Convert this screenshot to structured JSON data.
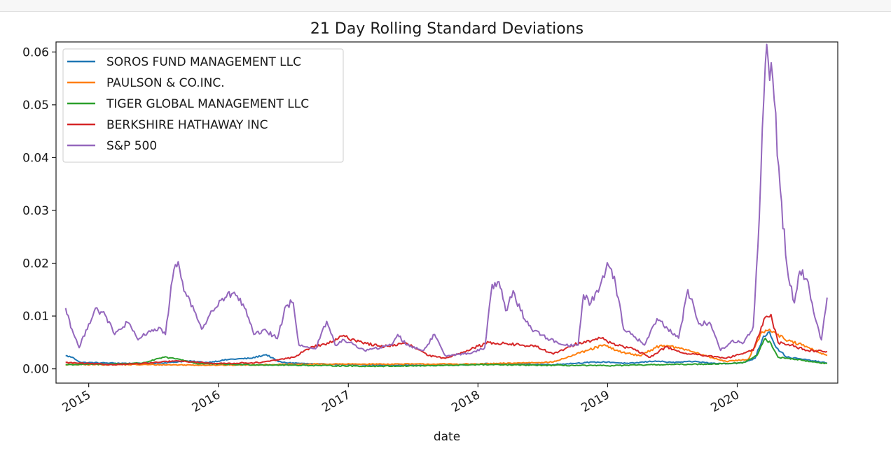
{
  "chart_data": {
    "type": "line",
    "title": "21 Day Rolling Standard Deviations",
    "xlabel": "date",
    "ylabel": "",
    "xlim": [
      "2014-10-01",
      "2020-10-10"
    ],
    "ylim": [
      -0.0027,
      0.0619
    ],
    "x_tick_labels": [
      "2015",
      "2016",
      "2017",
      "2018",
      "2019",
      "2020"
    ],
    "x_ticks": [
      "2015-01-01",
      "2016-01-01",
      "2017-01-01",
      "2018-01-01",
      "2019-01-01",
      "2020-01-01"
    ],
    "y_ticks": [
      0.0,
      0.01,
      0.02,
      0.03,
      0.04,
      0.05,
      0.06
    ],
    "y_tick_labels": [
      "0.00",
      "0.01",
      "0.02",
      "0.03",
      "0.04",
      "0.05",
      "0.06"
    ],
    "grid": false,
    "legend_position": "upper left",
    "series": [
      {
        "name": "SOROS FUND MANAGEMENT LLC",
        "color": "#1f77b4",
        "points": [
          [
            "2014-10-28",
            0.0025
          ],
          [
            "2014-11-15",
            0.0022
          ],
          [
            "2014-12-10",
            0.0012
          ],
          [
            "2015-03-01",
            0.0011
          ],
          [
            "2015-06-01",
            0.001
          ],
          [
            "2015-08-20",
            0.0012
          ],
          [
            "2015-10-01",
            0.0015
          ],
          [
            "2015-12-01",
            0.0012
          ],
          [
            "2016-02-01",
            0.0018
          ],
          [
            "2016-04-01",
            0.002
          ],
          [
            "2016-05-15",
            0.0027
          ],
          [
            "2016-06-15",
            0.0015
          ],
          [
            "2016-07-01",
            0.0012
          ],
          [
            "2016-10-01",
            0.0009
          ],
          [
            "2017-01-01",
            0.0008
          ],
          [
            "2017-06-01",
            0.0007
          ],
          [
            "2017-10-01",
            0.0007
          ],
          [
            "2018-02-15",
            0.001
          ],
          [
            "2018-04-01",
            0.0009
          ],
          [
            "2018-08-01",
            0.0008
          ],
          [
            "2018-11-01",
            0.0012
          ],
          [
            "2019-01-01",
            0.0013
          ],
          [
            "2019-03-01",
            0.001
          ],
          [
            "2019-05-15",
            0.0015
          ],
          [
            "2019-07-01",
            0.0012
          ],
          [
            "2019-09-01",
            0.0014
          ],
          [
            "2019-11-01",
            0.001
          ],
          [
            "2020-01-15",
            0.0011
          ],
          [
            "2020-02-20",
            0.002
          ],
          [
            "2020-03-15",
            0.0062
          ],
          [
            "2020-04-01",
            0.007
          ],
          [
            "2020-04-20",
            0.004
          ],
          [
            "2020-05-20",
            0.0022
          ],
          [
            "2020-07-15",
            0.0017
          ],
          [
            "2020-09-10",
            0.0011
          ]
        ]
      },
      {
        "name": "PAULSON & CO.INC.",
        "color": "#ff7f0e",
        "points": [
          [
            "2014-10-28",
            0.0008
          ],
          [
            "2015-06-01",
            0.0008
          ],
          [
            "2016-01-01",
            0.0007
          ],
          [
            "2016-06-01",
            0.0008
          ],
          [
            "2016-10-01",
            0.0009
          ],
          [
            "2017-06-01",
            0.0009
          ],
          [
            "2018-01-01",
            0.0009
          ],
          [
            "2018-08-01",
            0.0013
          ],
          [
            "2018-10-15",
            0.003
          ],
          [
            "2018-12-20",
            0.0045
          ],
          [
            "2019-02-01",
            0.0033
          ],
          [
            "2019-04-01",
            0.0025
          ],
          [
            "2019-06-01",
            0.0045
          ],
          [
            "2019-08-01",
            0.0038
          ],
          [
            "2019-10-01",
            0.0025
          ],
          [
            "2019-12-01",
            0.0014
          ],
          [
            "2020-02-01",
            0.0018
          ],
          [
            "2020-03-10",
            0.007
          ],
          [
            "2020-04-01",
            0.0075
          ],
          [
            "2020-05-15",
            0.0055
          ],
          [
            "2020-07-01",
            0.0045
          ],
          [
            "2020-08-15",
            0.0032
          ],
          [
            "2020-09-10",
            0.0025
          ]
        ]
      },
      {
        "name": "TIGER GLOBAL MANAGEMENT LLC",
        "color": "#2ca02c",
        "points": [
          [
            "2014-10-28",
            0.0008
          ],
          [
            "2015-03-01",
            0.0009
          ],
          [
            "2015-06-01",
            0.0011
          ],
          [
            "2015-08-01",
            0.0022
          ],
          [
            "2015-09-15",
            0.0018
          ],
          [
            "2015-11-01",
            0.001
          ],
          [
            "2016-03-01",
            0.0008
          ],
          [
            "2016-08-01",
            0.0007
          ],
          [
            "2017-03-01",
            0.0005
          ],
          [
            "2017-09-01",
            0.0006
          ],
          [
            "2018-01-01",
            0.0008
          ],
          [
            "2018-06-01",
            0.0007
          ],
          [
            "2019-01-01",
            0.0006
          ],
          [
            "2019-06-01",
            0.0008
          ],
          [
            "2019-10-01",
            0.0009
          ],
          [
            "2020-01-15",
            0.0011
          ],
          [
            "2020-02-25",
            0.0025
          ],
          [
            "2020-03-20",
            0.0058
          ],
          [
            "2020-04-05",
            0.0048
          ],
          [
            "2020-04-25",
            0.0022
          ],
          [
            "2020-06-15",
            0.0018
          ],
          [
            "2020-08-01",
            0.0013
          ],
          [
            "2020-09-10",
            0.001
          ]
        ]
      },
      {
        "name": "BERKSHIRE HATHAWAY INC",
        "color": "#d62728",
        "points": [
          [
            "2014-10-28",
            0.0012
          ],
          [
            "2015-03-01",
            0.0008
          ],
          [
            "2015-06-01",
            0.001
          ],
          [
            "2015-09-01",
            0.0015
          ],
          [
            "2016-01-01",
            0.001
          ],
          [
            "2016-05-01",
            0.0012
          ],
          [
            "2016-08-01",
            0.0022
          ],
          [
            "2016-09-15",
            0.004
          ],
          [
            "2016-11-15",
            0.005
          ],
          [
            "2016-12-15",
            0.0062
          ],
          [
            "2017-02-01",
            0.0052
          ],
          [
            "2017-04-01",
            0.0042
          ],
          [
            "2017-06-15",
            0.0048
          ],
          [
            "2017-08-15",
            0.0025
          ],
          [
            "2017-10-01",
            0.002
          ],
          [
            "2017-12-01",
            0.0035
          ],
          [
            "2018-02-01",
            0.005
          ],
          [
            "2018-04-01",
            0.0047
          ],
          [
            "2018-06-15",
            0.0042
          ],
          [
            "2018-08-01",
            0.0028
          ],
          [
            "2018-10-15",
            0.005
          ],
          [
            "2018-12-15",
            0.0058
          ],
          [
            "2019-01-15",
            0.0048
          ],
          [
            "2019-03-15",
            0.0037
          ],
          [
            "2019-05-01",
            0.0022
          ],
          [
            "2019-06-15",
            0.0042
          ],
          [
            "2019-08-01",
            0.003
          ],
          [
            "2019-10-01",
            0.0025
          ],
          [
            "2019-12-01",
            0.002
          ],
          [
            "2020-01-20",
            0.003
          ],
          [
            "2020-02-15",
            0.0035
          ],
          [
            "2020-03-20",
            0.0098
          ],
          [
            "2020-04-05",
            0.0103
          ],
          [
            "2020-04-25",
            0.005
          ],
          [
            "2020-06-01",
            0.0045
          ],
          [
            "2020-07-15",
            0.0035
          ],
          [
            "2020-09-10",
            0.0033
          ]
        ]
      },
      {
        "name": "S&P 500",
        "color": "#9467bd",
        "points": [
          [
            "2014-10-28",
            0.0115
          ],
          [
            "2014-11-15",
            0.0075
          ],
          [
            "2014-12-05",
            0.004
          ],
          [
            "2015-01-01",
            0.0085
          ],
          [
            "2015-01-20",
            0.0115
          ],
          [
            "2015-02-20",
            0.0098
          ],
          [
            "2015-03-15",
            0.0065
          ],
          [
            "2015-04-20",
            0.0088
          ],
          [
            "2015-05-20",
            0.0055
          ],
          [
            "2015-06-20",
            0.0072
          ],
          [
            "2015-07-25",
            0.0075
          ],
          [
            "2015-08-05",
            0.0065
          ],
          [
            "2015-08-25",
            0.017
          ],
          [
            "2015-09-10",
            0.0203
          ],
          [
            "2015-09-30",
            0.0145
          ],
          [
            "2015-10-25",
            0.011
          ],
          [
            "2015-11-15",
            0.0075
          ],
          [
            "2015-12-15",
            0.011
          ],
          [
            "2016-01-20",
            0.0135
          ],
          [
            "2016-02-15",
            0.0145
          ],
          [
            "2016-03-15",
            0.0115
          ],
          [
            "2016-04-10",
            0.0065
          ],
          [
            "2016-05-15",
            0.0072
          ],
          [
            "2016-06-15",
            0.0057
          ],
          [
            "2016-07-10",
            0.012
          ],
          [
            "2016-07-30",
            0.0125
          ],
          [
            "2016-08-15",
            0.0045
          ],
          [
            "2016-10-01",
            0.0038
          ],
          [
            "2016-11-01",
            0.009
          ],
          [
            "2016-11-25",
            0.0045
          ],
          [
            "2016-12-20",
            0.0055
          ],
          [
            "2017-02-15",
            0.0035
          ],
          [
            "2017-04-01",
            0.004
          ],
          [
            "2017-05-01",
            0.0045
          ],
          [
            "2017-05-20",
            0.0065
          ],
          [
            "2017-06-15",
            0.0045
          ],
          [
            "2017-08-01",
            0.0035
          ],
          [
            "2017-09-01",
            0.0065
          ],
          [
            "2017-10-01",
            0.0025
          ],
          [
            "2017-12-15",
            0.003
          ],
          [
            "2018-01-20",
            0.004
          ],
          [
            "2018-02-10",
            0.016
          ],
          [
            "2018-03-01",
            0.0165
          ],
          [
            "2018-03-20",
            0.011
          ],
          [
            "2018-04-10",
            0.0148
          ],
          [
            "2018-05-01",
            0.011
          ],
          [
            "2018-06-01",
            0.0075
          ],
          [
            "2018-07-15",
            0.0058
          ],
          [
            "2018-09-01",
            0.0045
          ],
          [
            "2018-10-10",
            0.0045
          ],
          [
            "2018-10-25",
            0.014
          ],
          [
            "2018-11-15",
            0.0125
          ],
          [
            "2018-12-10",
            0.0155
          ],
          [
            "2018-12-31",
            0.0201
          ],
          [
            "2019-01-20",
            0.0175
          ],
          [
            "2019-02-15",
            0.0075
          ],
          [
            "2019-03-20",
            0.006
          ],
          [
            "2019-04-15",
            0.0045
          ],
          [
            "2019-05-20",
            0.0095
          ],
          [
            "2019-06-15",
            0.008
          ],
          [
            "2019-07-20",
            0.0058
          ],
          [
            "2019-08-15",
            0.015
          ],
          [
            "2019-09-15",
            0.0085
          ],
          [
            "2019-10-15",
            0.0088
          ],
          [
            "2019-11-15",
            0.0035
          ],
          [
            "2019-12-15",
            0.0052
          ],
          [
            "2020-01-20",
            0.005
          ],
          [
            "2020-02-15",
            0.008
          ],
          [
            "2020-02-28",
            0.023
          ],
          [
            "2020-03-20",
            0.0578
          ],
          [
            "2020-03-28",
            0.0585
          ],
          [
            "2020-04-10",
            0.055
          ],
          [
            "2020-05-01",
            0.034
          ],
          [
            "2020-05-20",
            0.0195
          ],
          [
            "2020-06-10",
            0.0125
          ],
          [
            "2020-06-25",
            0.0185
          ],
          [
            "2020-07-15",
            0.017
          ],
          [
            "2020-08-10",
            0.009
          ],
          [
            "2020-08-25",
            0.0055
          ],
          [
            "2020-09-10",
            0.0135
          ]
        ]
      }
    ]
  }
}
